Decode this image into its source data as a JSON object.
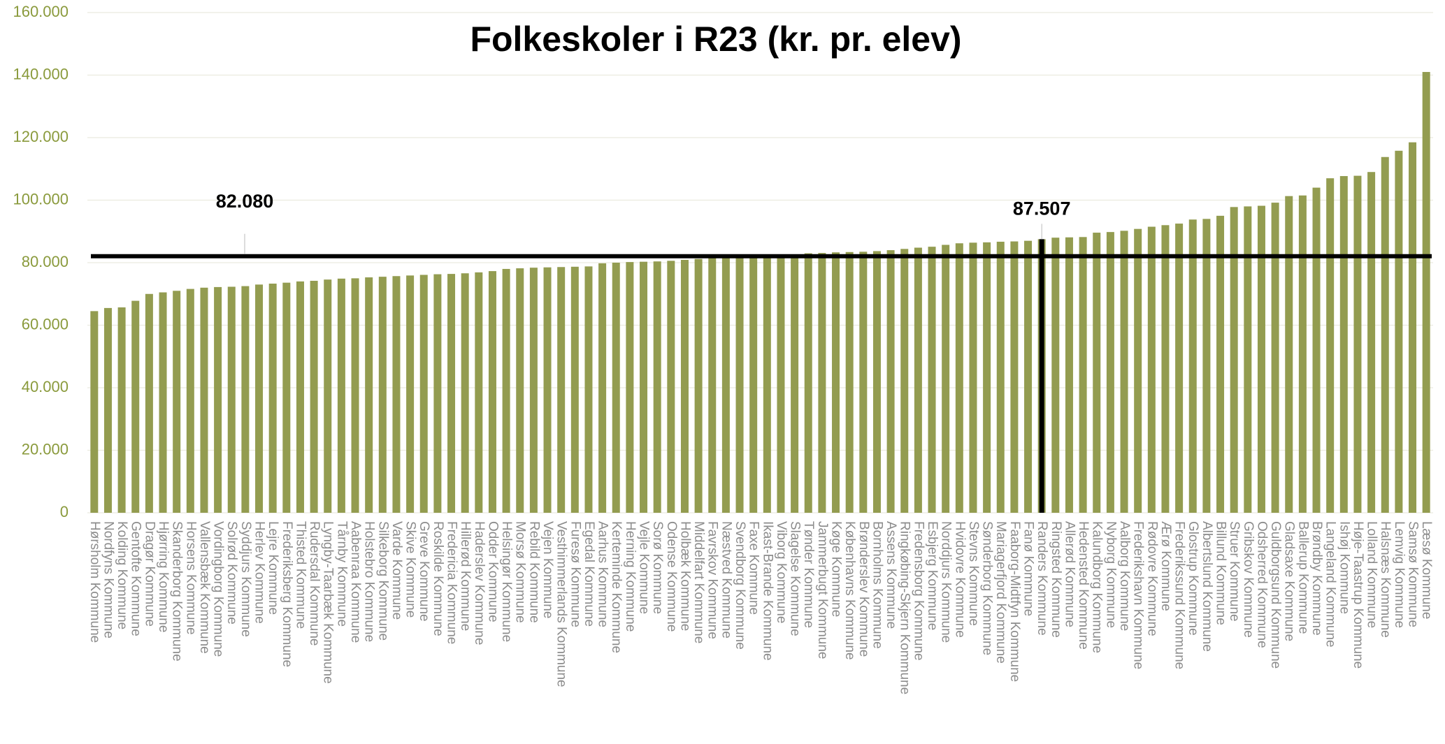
{
  "chart_data": {
    "type": "bar",
    "title": "Folkeskoler i R23 (kr. pr. elev)",
    "categories": [
      "Hørsholm Kommune",
      "Nordfyns Kommune",
      "Kolding Kommune",
      "Gentofte Kommune",
      "Dragør Kommune",
      "Hjørring Kommune",
      "Skanderborg Kommune",
      "Horsens Kommune",
      "Vallensbæk Kommune",
      "Vordingborg Kommune",
      "Solrød Kommune",
      "Syddjurs Kommune",
      "Herlev Kommune",
      "Lejre Kommune",
      "Frederiksberg Kommune",
      "Thisted Kommune",
      "Rudersdal Kommune",
      "Lyngby-Taarbæk Kommune",
      "Tårnby Kommune",
      "Aabenraa Kommune",
      "Holstebro Kommune",
      "Silkeborg Kommune",
      "Varde Kommune",
      "Skive Kommune",
      "Greve Kommune",
      "Roskilde Kommune",
      "Fredericia Kommune",
      "Hillerød Kommune",
      "Haderslev Kommune",
      "Odder Kommune",
      "Helsingør Kommune",
      "Morsø Kommune",
      "Rebild Kommune",
      "Vejen Kommune",
      "Vesthimmerlands Kommune",
      "Furesø Kommune",
      "Egedal Kommune",
      "Aarhus Kommune",
      "Kerteminde Kommune",
      "Herning Kommune",
      "Vejle Kommune",
      "Sorø Kommune",
      "Odense Kommune",
      "Holbæk Kommune",
      "Middelfart Kommune",
      "Favrskov Kommune",
      "Næstved Kommune",
      "Svendborg Kommune",
      "Faxe Kommune",
      "Ikast-Brande Kommune",
      "Viborg Kommune",
      "Slagelse Kommune",
      "Tønder Kommune",
      "Jammerbugt Kommune",
      "Køge Kommune",
      "Københavns Kommune",
      "Brønderslev Kommune",
      "Bornholms Kommune",
      "Assens Kommune",
      "Ringkøbing-Skjern Kommune",
      "Fredensborg Kommune",
      "Esbjerg Kommune",
      "Norddjurs Kommune",
      "Hvidovre Kommune",
      "Stevns Kommune",
      "Sønderborg Kommune",
      "Mariagerfjord Kommune",
      "Faaborg-Midtfyn Kommune",
      "Fanø Kommune",
      "Randers Kommune",
      "Ringsted Kommune",
      "Allerød Kommune",
      "Hedensted Kommune",
      "Kalundborg Kommune",
      "Nyborg Kommune",
      "Aalborg Kommune",
      "Frederikshavn Kommune",
      "Rødovre Kommune",
      "Ærø Kommune",
      "Frederikssund Kommune",
      "Glostrup Kommune",
      "Albertslund Kommune",
      "Billund Kommune",
      "Struer Kommune",
      "Gribskov Kommune",
      "Odsherred Kommune",
      "Guldborgsund Kommune",
      "Gladsaxe Kommune",
      "Ballerup Kommune",
      "Brøndby Kommune",
      "Langeland Kommune",
      "Ishøj Kommune",
      "Høje-Taastrup Kommune",
      "Lolland Kommune",
      "Halsnæs Kommune",
      "Lemvig Kommune",
      "Samsø Kommune",
      "Læsø Kommune"
    ],
    "values": [
      64500,
      65500,
      65700,
      67800,
      70000,
      70500,
      71000,
      71600,
      72000,
      72200,
      72300,
      72500,
      73000,
      73300,
      73600,
      74000,
      74200,
      74600,
      74900,
      75000,
      75300,
      75500,
      75700,
      75900,
      76100,
      76300,
      76400,
      76600,
      76900,
      77300,
      78000,
      78200,
      78400,
      78500,
      78600,
      78700,
      78800,
      79800,
      80000,
      80200,
      80300,
      80400,
      80600,
      80900,
      81200,
      81500,
      81600,
      81700,
      81800,
      82000,
      82300,
      82500,
      83000,
      83100,
      83300,
      83400,
      83500,
      83700,
      84000,
      84400,
      84800,
      85100,
      85700,
      86200,
      86400,
      86500,
      86700,
      86800,
      87000,
      87507,
      88000,
      88100,
      88200,
      89600,
      89800,
      90200,
      90800,
      91500,
      92000,
      92500,
      93800,
      94000,
      95000,
      97800,
      98000,
      98200,
      99200,
      101300,
      101500,
      104000,
      107000,
      107700,
      107800,
      109000,
      113800,
      115800,
      118500,
      141000
    ],
    "color": "#939c50",
    "ylim": [
      0,
      160000
    ],
    "yticks": [
      0,
      {
        "value": 20000,
        "label": "20.000"
      },
      {
        "value": 40000,
        "label": "40.000"
      },
      {
        "value": 60000,
        "label": "60.000"
      },
      {
        "value": 80000,
        "label": "80.000"
      },
      {
        "value": 100000,
        "label": "100.000"
      },
      {
        "value": 120000,
        "label": "120.000"
      },
      {
        "value": 140000,
        "label": "140.000"
      },
      {
        "value": 160000,
        "label": "160.000"
      }
    ],
    "grid": true,
    "average_line": {
      "value": 82080,
      "label": "82.080"
    },
    "highlight": {
      "category": "Randers Kommune",
      "value": 87507,
      "label": "87.507"
    }
  }
}
